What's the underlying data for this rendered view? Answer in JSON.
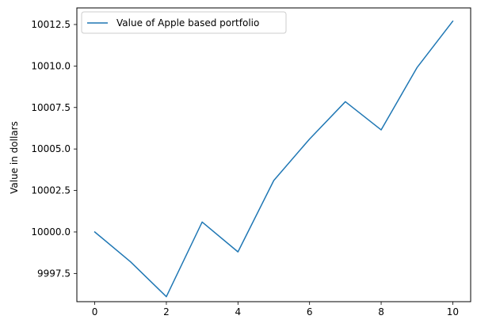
{
  "chart_data": {
    "type": "line",
    "title": "",
    "xlabel": "",
    "ylabel": "Value in dollars",
    "xlim": [
      -0.5,
      10.5
    ],
    "ylim": [
      9995.8,
      10013.5
    ],
    "xticks": [
      0,
      2,
      4,
      6,
      8,
      10
    ],
    "xtick_labels": [
      "0",
      "2",
      "4",
      "6",
      "8",
      "10"
    ],
    "yticks": [
      9997.5,
      10000.0,
      10002.5,
      10005.0,
      10007.5,
      10010.0,
      10012.5
    ],
    "ytick_labels": [
      "9997.5",
      "10000.0",
      "10002.5",
      "10005.0",
      "10007.5",
      "10010.0",
      "10012.5"
    ],
    "grid": false,
    "legend_position": "top-left",
    "series": [
      {
        "name": "Value of Apple based portfolio",
        "color": "#1f77b4",
        "x": [
          0,
          1,
          2,
          3,
          4,
          5,
          6,
          7,
          8,
          9,
          10
        ],
        "y": [
          10000.0,
          9998.2,
          9996.1,
          10000.6,
          9998.8,
          10003.1,
          10005.6,
          10007.85,
          10006.15,
          10009.9,
          10012.7
        ]
      }
    ]
  }
}
